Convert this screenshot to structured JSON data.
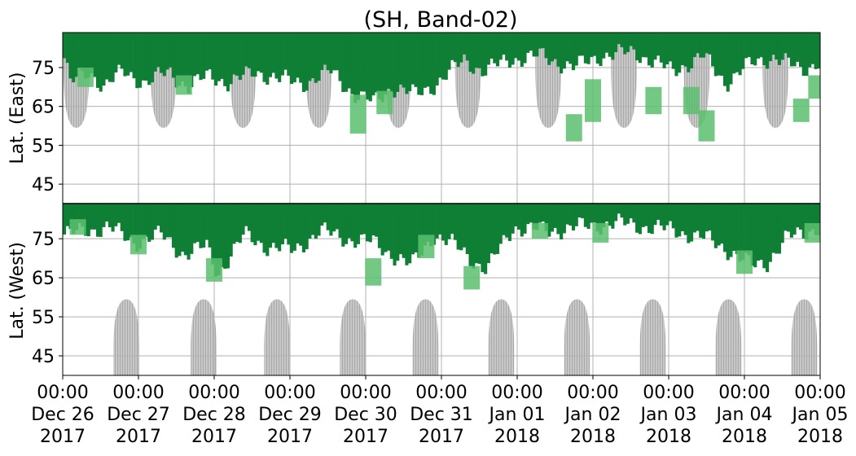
{
  "chart_data": {
    "type": "heatmap",
    "title": "(SH, Band-02)",
    "ylabel_top": "Lat. (East)",
    "ylabel_bottom": "Lat. (West)",
    "y_ticks_top": [
      "45",
      "55",
      "65",
      "75"
    ],
    "y_ticks_bottom": [
      "75",
      "65",
      "55",
      "45"
    ],
    "x_ticks": [
      {
        "time": "00:00",
        "date": "Dec 26",
        "year": "2017"
      },
      {
        "time": "00:00",
        "date": "Dec 27",
        "year": "2017"
      },
      {
        "time": "00:00",
        "date": "Dec 28",
        "year": "2017"
      },
      {
        "time": "00:00",
        "date": "Dec 29",
        "year": "2017"
      },
      {
        "time": "00:00",
        "date": "Dec 30",
        "year": "2017"
      },
      {
        "time": "00:00",
        "date": "Dec 31",
        "year": "2017"
      },
      {
        "time": "00:00",
        "date": "Jan 01",
        "year": "2018"
      },
      {
        "time": "00:00",
        "date": "Jan 02",
        "year": "2018"
      },
      {
        "time": "00:00",
        "date": "Jan 03",
        "year": "2018"
      },
      {
        "time": "00:00",
        "date": "Jan 04",
        "year": "2018"
      },
      {
        "time": "00:00",
        "date": "Jan 05",
        "year": "2018"
      }
    ],
    "x_range_days": [
      0,
      10
    ],
    "lat_range_top_east": [
      40,
      84
    ],
    "lat_range_bottom_west": [
      84,
      40
    ],
    "grid": true,
    "colors": {
      "strong": "#0f7f35",
      "weak": "#5bbf6e",
      "sunlit": "#bfbfbf",
      "grid": "#b0b0b0",
      "separator": "#000000"
    },
    "sunlit_east": [
      {
        "day": 0.18,
        "half_width": 0.17,
        "bottom_lat": 59.5
      },
      {
        "day": 1.33,
        "half_width": 0.17,
        "bottom_lat": 59.5
      },
      {
        "day": 2.38,
        "half_width": 0.17,
        "bottom_lat": 59.5
      },
      {
        "day": 3.38,
        "half_width": 0.17,
        "bottom_lat": 59.5
      },
      {
        "day": 4.43,
        "half_width": 0.17,
        "bottom_lat": 59.5
      },
      {
        "day": 5.35,
        "half_width": 0.17,
        "bottom_lat": 59.5
      },
      {
        "day": 6.41,
        "half_width": 0.17,
        "bottom_lat": 59.5
      },
      {
        "day": 7.41,
        "half_width": 0.17,
        "bottom_lat": 59.5
      },
      {
        "day": 8.37,
        "half_width": 0.17,
        "bottom_lat": 59.5
      },
      {
        "day": 9.41,
        "half_width": 0.17,
        "bottom_lat": 59.5
      }
    ],
    "sunlit_west": [
      {
        "day": 0.84,
        "half_width": 0.17,
        "top_lat": 59.5
      },
      {
        "day": 1.86,
        "half_width": 0.17,
        "top_lat": 59.5
      },
      {
        "day": 2.83,
        "half_width": 0.17,
        "top_lat": 59.5
      },
      {
        "day": 3.83,
        "half_width": 0.17,
        "top_lat": 59.5
      },
      {
        "day": 4.79,
        "half_width": 0.17,
        "top_lat": 59.5
      },
      {
        "day": 5.79,
        "half_width": 0.17,
        "top_lat": 59.5
      },
      {
        "day": 6.79,
        "half_width": 0.17,
        "top_lat": 59.5
      },
      {
        "day": 7.79,
        "half_width": 0.17,
        "top_lat": 59.5
      },
      {
        "day": 8.79,
        "half_width": 0.17,
        "top_lat": 59.5
      },
      {
        "day": 9.79,
        "half_width": 0.17,
        "top_lat": 59.5
      }
    ],
    "auroral_activity_east": [
      {
        "day": 0.0,
        "lat_min": 79,
        "lat_max": 84,
        "level": "strong"
      },
      {
        "day": 0.1,
        "lat_min": 71,
        "lat_max": 84,
        "level": "strong"
      },
      {
        "day": 0.35,
        "lat_min": 74,
        "lat_max": 84,
        "level": "strong"
      },
      {
        "day": 0.55,
        "lat_min": 70,
        "lat_max": 84,
        "level": "strong"
      },
      {
        "day": 0.8,
        "lat_min": 74,
        "lat_max": 84,
        "level": "strong"
      },
      {
        "day": 1.1,
        "lat_min": 71,
        "lat_max": 84,
        "level": "strong"
      },
      {
        "day": 1.4,
        "lat_min": 74,
        "lat_max": 84,
        "level": "strong"
      },
      {
        "day": 1.65,
        "lat_min": 70,
        "lat_max": 84,
        "level": "strong"
      },
      {
        "day": 1.95,
        "lat_min": 73,
        "lat_max": 84,
        "level": "strong"
      },
      {
        "day": 2.2,
        "lat_min": 71,
        "lat_max": 84,
        "level": "strong"
      },
      {
        "day": 2.55,
        "lat_min": 74,
        "lat_max": 84,
        "level": "strong"
      },
      {
        "day": 2.85,
        "lat_min": 72,
        "lat_max": 84,
        "level": "strong"
      },
      {
        "day": 3.2,
        "lat_min": 71,
        "lat_max": 84,
        "level": "strong"
      },
      {
        "day": 3.55,
        "lat_min": 74,
        "lat_max": 84,
        "level": "strong"
      },
      {
        "day": 3.85,
        "lat_min": 68,
        "lat_max": 84,
        "level": "strong"
      },
      {
        "day": 4.1,
        "lat_min": 66,
        "lat_max": 84,
        "level": "strong"
      },
      {
        "day": 4.35,
        "lat_min": 70,
        "lat_max": 84,
        "level": "strong"
      },
      {
        "day": 4.65,
        "lat_min": 68,
        "lat_max": 84,
        "level": "strong"
      },
      {
        "day": 4.95,
        "lat_min": 71,
        "lat_max": 84,
        "level": "strong"
      },
      {
        "day": 5.3,
        "lat_min": 77,
        "lat_max": 84,
        "level": "strong"
      },
      {
        "day": 5.55,
        "lat_min": 74,
        "lat_max": 84,
        "level": "strong"
      },
      {
        "day": 5.9,
        "lat_min": 77,
        "lat_max": 84,
        "level": "strong"
      },
      {
        "day": 6.3,
        "lat_min": 78,
        "lat_max": 84,
        "level": "strong"
      },
      {
        "day": 6.75,
        "lat_min": 75,
        "lat_max": 84,
        "level": "strong"
      },
      {
        "day": 7.1,
        "lat_min": 78,
        "lat_max": 84,
        "level": "strong"
      },
      {
        "day": 7.55,
        "lat_min": 79,
        "lat_max": 84,
        "level": "strong"
      },
      {
        "day": 8.05,
        "lat_min": 74,
        "lat_max": 84,
        "level": "strong"
      },
      {
        "day": 8.45,
        "lat_min": 78,
        "lat_max": 84,
        "level": "strong"
      },
      {
        "day": 8.75,
        "lat_min": 71,
        "lat_max": 84,
        "level": "strong"
      },
      {
        "day": 9.0,
        "lat_min": 75,
        "lat_max": 84,
        "level": "strong"
      },
      {
        "day": 9.4,
        "lat_min": 78,
        "lat_max": 84,
        "level": "strong"
      },
      {
        "day": 9.75,
        "lat_min": 74,
        "lat_max": 84,
        "level": "strong"
      },
      {
        "day": 10.0,
        "lat_min": 77,
        "lat_max": 84,
        "level": "strong"
      },
      {
        "day": 0.3,
        "lat_min": 70,
        "lat_max": 75,
        "level": "weak"
      },
      {
        "day": 1.6,
        "lat_min": 68,
        "lat_max": 73,
        "level": "weak"
      },
      {
        "day": 3.9,
        "lat_min": 58,
        "lat_max": 68,
        "level": "weak"
      },
      {
        "day": 4.25,
        "lat_min": 63,
        "lat_max": 69,
        "level": "weak"
      },
      {
        "day": 6.75,
        "lat_min": 56,
        "lat_max": 63,
        "level": "weak"
      },
      {
        "day": 7.0,
        "lat_min": 61,
        "lat_max": 72,
        "level": "weak"
      },
      {
        "day": 7.8,
        "lat_min": 63,
        "lat_max": 70,
        "level": "weak"
      },
      {
        "day": 8.3,
        "lat_min": 63,
        "lat_max": 70,
        "level": "weak"
      },
      {
        "day": 8.5,
        "lat_min": 56,
        "lat_max": 64,
        "level": "weak"
      },
      {
        "day": 9.75,
        "lat_min": 61,
        "lat_max": 67,
        "level": "weak"
      },
      {
        "day": 9.95,
        "lat_min": 67,
        "lat_max": 73,
        "level": "weak"
      }
    ],
    "auroral_activity_west": [
      {
        "day": 0.0,
        "lat_min": 76,
        "lat_max": 84,
        "level": "strong"
      },
      {
        "day": 0.3,
        "lat_min": 77,
        "lat_max": 84,
        "level": "strong"
      },
      {
        "day": 0.6,
        "lat_min": 78,
        "lat_max": 84,
        "level": "strong"
      },
      {
        "day": 0.95,
        "lat_min": 74,
        "lat_max": 84,
        "level": "strong"
      },
      {
        "day": 1.3,
        "lat_min": 76,
        "lat_max": 84,
        "level": "strong"
      },
      {
        "day": 1.6,
        "lat_min": 71,
        "lat_max": 84,
        "level": "strong"
      },
      {
        "day": 1.9,
        "lat_min": 73,
        "lat_max": 84,
        "level": "strong"
      },
      {
        "day": 2.05,
        "lat_min": 66,
        "lat_max": 84,
        "level": "strong"
      },
      {
        "day": 2.4,
        "lat_min": 76,
        "lat_max": 84,
        "level": "strong"
      },
      {
        "day": 2.7,
        "lat_min": 73,
        "lat_max": 84,
        "level": "strong"
      },
      {
        "day": 3.05,
        "lat_min": 72,
        "lat_max": 84,
        "level": "strong"
      },
      {
        "day": 3.4,
        "lat_min": 77,
        "lat_max": 84,
        "level": "strong"
      },
      {
        "day": 3.75,
        "lat_min": 75,
        "lat_max": 84,
        "level": "strong"
      },
      {
        "day": 4.1,
        "lat_min": 74,
        "lat_max": 84,
        "level": "strong"
      },
      {
        "day": 4.35,
        "lat_min": 71,
        "lat_max": 84,
        "level": "strong"
      },
      {
        "day": 4.6,
        "lat_min": 68,
        "lat_max": 84,
        "level": "strong"
      },
      {
        "day": 4.9,
        "lat_min": 76,
        "lat_max": 84,
        "level": "strong"
      },
      {
        "day": 5.2,
        "lat_min": 73,
        "lat_max": 84,
        "level": "strong"
      },
      {
        "day": 5.45,
        "lat_min": 69,
        "lat_max": 84,
        "level": "strong"
      },
      {
        "day": 5.6,
        "lat_min": 67,
        "lat_max": 84,
        "level": "strong"
      },
      {
        "day": 5.95,
        "lat_min": 78,
        "lat_max": 84,
        "level": "strong"
      },
      {
        "day": 6.4,
        "lat_min": 77,
        "lat_max": 84,
        "level": "strong"
      },
      {
        "day": 6.8,
        "lat_min": 78,
        "lat_max": 84,
        "level": "strong"
      },
      {
        "day": 7.3,
        "lat_min": 79,
        "lat_max": 84,
        "level": "strong"
      },
      {
        "day": 7.75,
        "lat_min": 78,
        "lat_max": 84,
        "level": "strong"
      },
      {
        "day": 8.1,
        "lat_min": 77,
        "lat_max": 84,
        "level": "strong"
      },
      {
        "day": 8.5,
        "lat_min": 75,
        "lat_max": 84,
        "level": "strong"
      },
      {
        "day": 8.8,
        "lat_min": 72,
        "lat_max": 84,
        "level": "strong"
      },
      {
        "day": 9.1,
        "lat_min": 68,
        "lat_max": 84,
        "level": "strong"
      },
      {
        "day": 9.3,
        "lat_min": 69,
        "lat_max": 84,
        "level": "strong"
      },
      {
        "day": 9.55,
        "lat_min": 75,
        "lat_max": 84,
        "level": "strong"
      },
      {
        "day": 9.85,
        "lat_min": 77,
        "lat_max": 84,
        "level": "strong"
      },
      {
        "day": 10.0,
        "lat_min": 78,
        "lat_max": 84,
        "level": "strong"
      },
      {
        "day": 0.2,
        "lat_min": 76,
        "lat_max": 80,
        "level": "weak"
      },
      {
        "day": 1.0,
        "lat_min": 71,
        "lat_max": 76,
        "level": "weak"
      },
      {
        "day": 2.0,
        "lat_min": 64,
        "lat_max": 70,
        "level": "weak"
      },
      {
        "day": 4.1,
        "lat_min": 63,
        "lat_max": 70,
        "level": "weak"
      },
      {
        "day": 4.8,
        "lat_min": 70,
        "lat_max": 76,
        "level": "weak"
      },
      {
        "day": 5.4,
        "lat_min": 62,
        "lat_max": 68,
        "level": "weak"
      },
      {
        "day": 6.3,
        "lat_min": 75,
        "lat_max": 79,
        "level": "weak"
      },
      {
        "day": 7.1,
        "lat_min": 74,
        "lat_max": 79,
        "level": "weak"
      },
      {
        "day": 9.0,
        "lat_min": 66,
        "lat_max": 72,
        "level": "weak"
      },
      {
        "day": 9.9,
        "lat_min": 74,
        "lat_max": 79,
        "level": "weak"
      }
    ]
  }
}
